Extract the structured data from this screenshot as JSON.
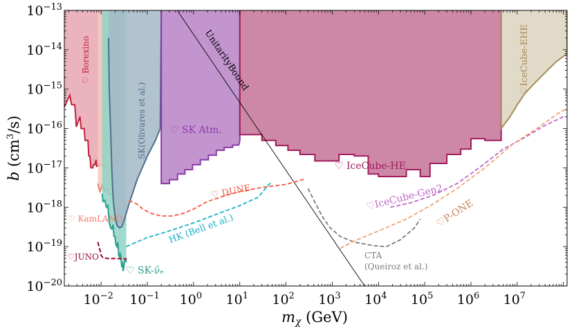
{
  "chart_data": {
    "type": "area",
    "title": "",
    "xlabel": "m_χ (GeV)",
    "ylabel": "b (cm³/s)",
    "x_scale": "log",
    "y_scale": "log",
    "xlim": [
      0.0016,
      120000000.0
    ],
    "ylim": [
      1e-20,
      1e-13
    ],
    "x_ticks": [
      {
        "value": 0.01,
        "label": "10",
        "exp": "−2"
      },
      {
        "value": 0.1,
        "label": "10",
        "exp": "−1"
      },
      {
        "value": 1,
        "label": "10",
        "exp": "0"
      },
      {
        "value": 10,
        "label": "10",
        "exp": "1"
      },
      {
        "value": 100,
        "label": "10",
        "exp": "2"
      },
      {
        "value": 1000,
        "label": "10",
        "exp": "3"
      },
      {
        "value": 10000,
        "label": "10",
        "exp": "4"
      },
      {
        "value": 100000,
        "label": "10",
        "exp": "5"
      },
      {
        "value": 1000000,
        "label": "10",
        "exp": "6"
      },
      {
        "value": 10000000,
        "label": "10",
        "exp": "7"
      }
    ],
    "y_ticks": [
      {
        "value": 1e-20,
        "label": "10",
        "exp": "−20"
      },
      {
        "value": 1e-19,
        "label": "10",
        "exp": "−19"
      },
      {
        "value": 1e-18,
        "label": "10",
        "exp": "−18"
      },
      {
        "value": 1e-17,
        "label": "10",
        "exp": "−17"
      },
      {
        "value": 1e-16,
        "label": "10",
        "exp": "−16"
      },
      {
        "value": 1e-15,
        "label": "10",
        "exp": "−15"
      },
      {
        "value": 1e-14,
        "label": "10",
        "exp": "−14"
      },
      {
        "value": 1e-13,
        "label": "10",
        "exp": "−13"
      }
    ],
    "regions": [
      {
        "name": "Borexino",
        "label": "♡ Borexino",
        "fill": "#e8a6b2",
        "stroke": "#c0223d",
        "boundary": [
          [
            0.0016,
            3.5e-16
          ],
          [
            0.0021,
            7e-16
          ],
          [
            0.0023,
            4e-16
          ],
          [
            0.0027,
            4e-16
          ],
          [
            0.0029,
            1.1e-16
          ],
          [
            0.0035,
            2e-16
          ],
          [
            0.0037,
            1e-16
          ],
          [
            0.0043,
            1e-16
          ],
          [
            0.0045,
            5e-17
          ],
          [
            0.0052,
            5e-17
          ],
          [
            0.0054,
            2e-17
          ],
          [
            0.0057,
            2e-17
          ],
          [
            0.006,
            1e-17
          ],
          [
            0.0066,
            1e-17
          ],
          [
            0.0068,
            1.2e-17
          ],
          [
            0.0073,
            1.2e-17
          ],
          [
            0.0078,
            1.6e-17
          ],
          [
            0.008,
            1.1e-17
          ],
          [
            0.01,
            1.2e-17
          ],
          [
            0.013,
            1.05e-17
          ],
          [
            0.014,
            1.15e-17
          ]
        ]
      },
      {
        "name": "KamLAND",
        "label": "♡ KamLAND",
        "fill": "#f4cbbd",
        "stroke": "#f08070",
        "boundary": [
          [
            0.0085,
            4e-18
          ],
          [
            0.009,
            3e-18
          ],
          [
            0.0095,
            2.5e-18
          ],
          [
            0.0105,
            3.5e-18
          ],
          [
            0.011,
            3.2e-18
          ],
          [
            0.012,
            2.5e-18
          ],
          [
            0.013,
            3e-18
          ],
          [
            0.0145,
            2.6e-18
          ],
          [
            0.016,
            2e-18
          ]
        ]
      },
      {
        "name": "JUNO",
        "label": "♡JUNO",
        "stroke": "#9b1030",
        "dashed": true,
        "curve": [
          [
            0.0085,
            1.3e-19
          ],
          [
            0.009,
            1e-19
          ],
          [
            0.0095,
            8e-20
          ],
          [
            0.01,
            6e-20
          ],
          [
            0.011,
            5.2e-20
          ],
          [
            0.014,
            5e-20
          ],
          [
            0.02,
            5e-20
          ],
          [
            0.03,
            4.9e-20
          ],
          [
            0.036,
            4.9e-20
          ]
        ]
      },
      {
        "name": "SK-nue",
        "label": "♡ SK-ν̄ₑ",
        "fill": "#8fd2c6",
        "stroke": "#2a9d8f",
        "boundary": [
          [
            0.0105,
            2.2e-18
          ],
          [
            0.011,
            1.4e-18
          ],
          [
            0.012,
            1.5e-18
          ],
          [
            0.013,
            1e-18
          ],
          [
            0.014,
            1.1e-18
          ],
          [
            0.015,
            4e-19
          ],
          [
            0.016,
            3e-19
          ],
          [
            0.017,
            2.8e-19
          ],
          [
            0.018,
            3.6e-19
          ],
          [
            0.019,
            1.8e-19
          ],
          [
            0.02,
            1.8e-19
          ],
          [
            0.021,
            1.1e-19
          ],
          [
            0.022,
            1e-19
          ],
          [
            0.023,
            1.3e-19
          ],
          [
            0.024,
            6e-20
          ],
          [
            0.025,
            5.5e-20
          ],
          [
            0.026,
            7e-20
          ],
          [
            0.027,
            4.8e-20
          ],
          [
            0.028,
            3e-20
          ],
          [
            0.029,
            4e-20
          ],
          [
            0.03,
            2.4e-20
          ],
          [
            0.032,
            4e-20
          ],
          [
            0.034,
            5e-20
          ],
          [
            0.035,
            4e-20
          ]
        ]
      },
      {
        "name": "SK Olivares",
        "label": "SK(Olivares et al.)",
        "fill": "#a5b8c8",
        "stroke": "#4d6e8a",
        "boundary": [
          [
            0.0145,
            2e-14
          ],
          [
            0.015,
            1e-15
          ],
          [
            0.016,
            1e-16
          ],
          [
            0.017,
            1e-17
          ],
          [
            0.018,
            2e-18
          ],
          [
            0.019,
            1e-18
          ],
          [
            0.0205,
            5e-19
          ],
          [
            0.022,
            3.5e-19
          ],
          [
            0.025,
            3e-19
          ],
          [
            0.028,
            3.2e-19
          ],
          [
            0.032,
            5e-19
          ],
          [
            0.04,
            1.2e-18
          ],
          [
            0.06,
            5e-18
          ],
          [
            0.1,
            2e-17
          ],
          [
            0.15,
            5e-17
          ],
          [
            0.19,
            1e-16
          ],
          [
            0.2,
            1e-13
          ]
        ]
      },
      {
        "name": "SK Atm",
        "label": "♡ SK Atm.",
        "fill": "#b883c6",
        "stroke": "#8a3aa8",
        "boundary": [
          [
            0.2,
            1e-13
          ],
          [
            0.2,
            4e-18
          ],
          [
            0.3,
            4e-18
          ],
          [
            0.3,
            5e-18
          ],
          [
            0.45,
            5e-18
          ],
          [
            0.45,
            7e-18
          ],
          [
            0.65,
            7e-18
          ],
          [
            0.65,
            9e-18
          ],
          [
            0.95,
            9e-18
          ],
          [
            0.95,
            1.2e-17
          ],
          [
            1.4,
            1.2e-17
          ],
          [
            1.4,
            1.6e-17
          ],
          [
            2.1,
            1.6e-17
          ],
          [
            2.1,
            2.1e-17
          ],
          [
            3.1,
            2.1e-17
          ],
          [
            3.1,
            2.8e-17
          ],
          [
            4.6,
            2.8e-17
          ],
          [
            4.6,
            3.3e-17
          ],
          [
            7,
            3.3e-17
          ],
          [
            7,
            3.8e-17
          ],
          [
            9.5,
            3.8e-17
          ],
          [
            10,
            5e-17
          ],
          [
            10,
            1e-13
          ]
        ]
      },
      {
        "name": "IceCube-HE",
        "label": "♡ IceCube-HE",
        "fill": "#c47396",
        "stroke": "#a11a5c",
        "boundary": [
          [
            10,
            1e-13
          ],
          [
            10,
            7e-17
          ],
          [
            30,
            7e-17
          ],
          [
            30,
            5e-17
          ],
          [
            60,
            5e-17
          ],
          [
            60,
            3.7e-17
          ],
          [
            110,
            3.7e-17
          ],
          [
            110,
            2.8e-17
          ],
          [
            200,
            2.8e-17
          ],
          [
            200,
            2.2e-17
          ],
          [
            420,
            2.2e-17
          ],
          [
            420,
            1.5e-17
          ],
          [
            1400,
            1.5e-17
          ],
          [
            1400,
            2.2e-17
          ],
          [
            3000,
            2.2e-17
          ],
          [
            3000,
            2e-17
          ],
          [
            6000,
            2e-17
          ],
          [
            6000,
            7e-18
          ],
          [
            10000,
            7e-18
          ],
          [
            10000,
            6e-18
          ],
          [
            40000,
            6e-18
          ],
          [
            40000,
            9e-18
          ],
          [
            80000,
            9e-18
          ],
          [
            80000,
            6e-18
          ],
          [
            130000,
            6e-18
          ],
          [
            130000,
            1.3e-17
          ],
          [
            300000,
            1.3e-17
          ],
          [
            300000,
            2.2e-17
          ],
          [
            600000,
            2.2e-17
          ],
          [
            600000,
            3e-17
          ],
          [
            1000000,
            3e-17
          ],
          [
            1000000,
            5.5e-17
          ],
          [
            2000000,
            5.5e-17
          ],
          [
            2000000,
            5e-17
          ],
          [
            4500000,
            5e-17
          ],
          [
            4500000,
            1e-13
          ]
        ]
      },
      {
        "name": "IceCube-EHE",
        "label": "♡IceCube-EHE",
        "fill": "#ddd4c0",
        "stroke": "#a58b57",
        "boundary": [
          [
            4500000,
            1e-13
          ],
          [
            4500000,
            1e-16
          ],
          [
            7000000,
            2e-16
          ],
          [
            10000000,
            4e-16
          ],
          [
            15000000,
            8e-16
          ],
          [
            25000000,
            1.5e-15
          ],
          [
            45000000,
            3e-15
          ],
          [
            70000000,
            5e-15
          ],
          [
            120000000,
            8e-15
          ],
          [
            120000000,
            1e-13
          ]
        ]
      },
      {
        "name": "Unitarity Bound",
        "label": "UnitarityBound",
        "stroke": "#000000",
        "curve": [
          [
            0.1,
            1.3e-12
          ],
          [
            5000,
            1e-20
          ]
        ]
      },
      {
        "name": "DUNE",
        "label": "♡ DUNE",
        "stroke": "#f05a40",
        "dashed": true,
        "curve": [
          [
            0.04,
            1.5e-18
          ],
          [
            0.06,
            1.2e-18
          ],
          [
            0.08,
            9e-19
          ],
          [
            0.12,
            7e-19
          ],
          [
            0.2,
            6e-19
          ],
          [
            0.35,
            6e-19
          ],
          [
            0.6,
            7e-19
          ],
          [
            1,
            9e-19
          ],
          [
            2,
            1.4e-18
          ],
          [
            5,
            2e-18
          ],
          [
            10,
            2.5e-18
          ],
          [
            30,
            3.2e-18
          ],
          [
            100,
            3.8e-18
          ],
          [
            250,
            5.2e-18
          ]
        ]
      },
      {
        "name": "HK (Bell et al.)",
        "label": "HK (Bell et al.)",
        "stroke": "#1aafc6",
        "dashed": true,
        "curve": [
          [
            0.035,
            1e-19
          ],
          [
            0.05,
            1.2e-19
          ],
          [
            0.1,
            1.7e-19
          ],
          [
            0.3,
            2.5e-19
          ],
          [
            1,
            4e-19
          ],
          [
            3,
            6.5e-19
          ],
          [
            10,
            1.1e-18
          ],
          [
            25,
            1.8e-18
          ],
          [
            40,
            3.5e-18
          ],
          [
            50,
            4.5e-18
          ]
        ]
      },
      {
        "name": "CTA",
        "label": "CTA",
        "sublabel": "(Queiroz et al.)",
        "stroke": "#7a7a7a",
        "dashed": true,
        "curve": [
          [
            300,
            3e-18
          ],
          [
            400,
            1.5e-18
          ],
          [
            600,
            6e-19
          ],
          [
            900,
            3e-19
          ],
          [
            1500,
            1.8e-19
          ],
          [
            3000,
            1.3e-19
          ],
          [
            8000,
            1.05e-19
          ],
          [
            15000,
            1e-19
          ],
          [
            30000,
            1.5e-19
          ],
          [
            60000,
            3e-19
          ],
          [
            80000,
            5e-19
          ]
        ]
      },
      {
        "name": "IceCube-Gen2",
        "label": "♡IceCube-Gen2",
        "stroke": "#c066c4",
        "dashed": true,
        "curve": [
          [
            18000,
            1e-18
          ],
          [
            50000,
            1.3e-18
          ],
          [
            150000,
            2e-18
          ],
          [
            500000,
            4e-18
          ],
          [
            1500000,
            1e-17
          ],
          [
            5000000,
            3e-17
          ],
          [
            15000000,
            6e-17
          ],
          [
            40000000,
            1.2e-16
          ],
          [
            100000000,
            2e-16
          ]
        ]
      },
      {
        "name": "P-ONE",
        "label": "♡P-ONE",
        "stroke": "#eba574",
        "dashed": true,
        "curve": [
          [
            1500,
            9e-20
          ],
          [
            3000,
            1.4e-19
          ],
          [
            10000,
            2.5e-19
          ],
          [
            40000,
            5e-19
          ],
          [
            150000,
            1.2e-18
          ],
          [
            500000,
            3e-18
          ],
          [
            2000000,
            1e-17
          ],
          [
            8000000,
            4e-17
          ],
          [
            30000000,
            1.1e-16
          ],
          [
            80000000,
            2.5e-16
          ],
          [
            120000000,
            3.2e-16
          ]
        ]
      }
    ]
  }
}
